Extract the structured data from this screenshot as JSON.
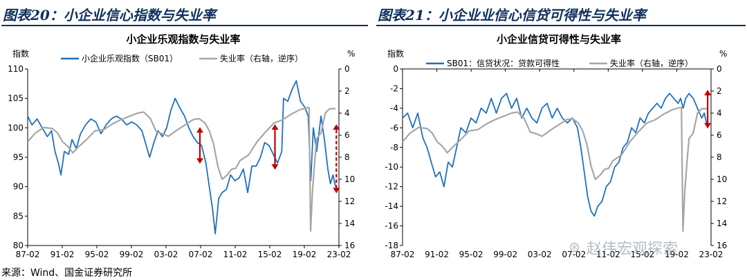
{
  "figures": [
    {
      "title": "图表20：小企业信心指数与失业率"
    },
    {
      "title": "图表21：小企业业信心信贷可得性与失业率"
    }
  ],
  "source": "来源：Wind、国金证券研究所",
  "watermark": "赵伟宏观探索",
  "chart_data": [
    {
      "type": "line",
      "title": "小企业乐观指数与失业率",
      "left_unit": "指数",
      "right_unit": "%",
      "x_ticks": [
        "87-02",
        "91-02",
        "95-02",
        "99-02",
        "03-02",
        "07-02",
        "11-02",
        "15-02",
        "19-02",
        "23-02"
      ],
      "ylim": [
        80,
        110
      ],
      "y_ticks": [
        80,
        85,
        90,
        95,
        100,
        105,
        110
      ],
      "y2lim": [
        0,
        16
      ],
      "y2_ticks": [
        0,
        2,
        4,
        6,
        8,
        10,
        12,
        14,
        16
      ],
      "y2_inverted": true,
      "series": [
        {
          "name": "小企业乐观指数（SB01）",
          "color": "#1f6fbf",
          "axis": "left",
          "points": [
            [
              1987.1,
              102
            ],
            [
              1987.6,
              100.5
            ],
            [
              1988.2,
              101.5
            ],
            [
              1988.8,
              100
            ],
            [
              1989.4,
              98.5
            ],
            [
              1989.9,
              99.5
            ],
            [
              1990.3,
              96
            ],
            [
              1990.7,
              94
            ],
            [
              1991.0,
              92
            ],
            [
              1991.4,
              96
            ],
            [
              1991.9,
              95.5
            ],
            [
              1992.3,
              98
            ],
            [
              1992.8,
              96.5
            ],
            [
              1993.3,
              99
            ],
            [
              1993.9,
              100.5
            ],
            [
              1994.5,
              101.5
            ],
            [
              1995.1,
              101
            ],
            [
              1995.7,
              99
            ],
            [
              1996.3,
              100.5
            ],
            [
              1996.9,
              101.5
            ],
            [
              1997.5,
              102
            ],
            [
              1998.1,
              101.5
            ],
            [
              1998.7,
              100.5
            ],
            [
              1999.3,
              101
            ],
            [
              1999.9,
              100.5
            ],
            [
              2000.5,
              99.5
            ],
            [
              2001.0,
              97
            ],
            [
              2001.4,
              95
            ],
            [
              2001.9,
              97.5
            ],
            [
              2002.4,
              99.5
            ],
            [
              2002.9,
              98.5
            ],
            [
              2003.4,
              100
            ],
            [
              2003.9,
              103
            ],
            [
              2004.4,
              105
            ],
            [
              2004.9,
              103.5
            ],
            [
              2005.5,
              102
            ],
            [
              2006.0,
              100
            ],
            [
              2006.5,
              98.5
            ],
            [
              2007.0,
              97.5
            ],
            [
              2007.5,
              97
            ],
            [
              2008.0,
              94
            ],
            [
              2008.4,
              90
            ],
            [
              2008.8,
              86
            ],
            [
              2009.1,
              82
            ],
            [
              2009.5,
              88
            ],
            [
              2009.9,
              89
            ],
            [
              2010.4,
              89.5
            ],
            [
              2010.9,
              92
            ],
            [
              2011.4,
              91
            ],
            [
              2011.9,
              91.5
            ],
            [
              2012.4,
              93
            ],
            [
              2012.9,
              89
            ],
            [
              2013.4,
              93.5
            ],
            [
              2013.9,
              93.5
            ],
            [
              2014.4,
              95
            ],
            [
              2014.9,
              97.5
            ],
            [
              2015.4,
              97
            ],
            [
              2015.9,
              95.5
            ],
            [
              2016.4,
              94
            ],
            [
              2016.9,
              96
            ],
            [
              2017.1,
              105
            ],
            [
              2017.6,
              104.5
            ],
            [
              2018.1,
              106.5
            ],
            [
              2018.6,
              108
            ],
            [
              2019.1,
              104.5
            ],
            [
              2019.6,
              103.5
            ],
            [
              2020.0,
              102
            ],
            [
              2020.3,
              91
            ],
            [
              2020.6,
              100
            ],
            [
              2021.0,
              96
            ],
            [
              2021.5,
              102
            ],
            [
              2021.9,
              98
            ],
            [
              2022.3,
              93
            ],
            [
              2022.6,
              90.5
            ],
            [
              2022.9,
              92
            ],
            [
              2023.2,
              90
            ]
          ]
        },
        {
          "name": "失业率（右轴，逆序）",
          "color": "#a6a6a6",
          "axis": "right",
          "points": [
            [
              1987.1,
              6.6
            ],
            [
              1988.0,
              5.8
            ],
            [
              1989.0,
              5.3
            ],
            [
              1990.0,
              5.4
            ],
            [
              1990.6,
              5.8
            ],
            [
              1991.2,
              6.6
            ],
            [
              1991.8,
              7.0
            ],
            [
              1992.4,
              7.6
            ],
            [
              1993.0,
              7.1
            ],
            [
              1994.0,
              6.4
            ],
            [
              1995.0,
              5.6
            ],
            [
              1996.0,
              5.5
            ],
            [
              1997.0,
              5.0
            ],
            [
              1998.0,
              4.6
            ],
            [
              1999.0,
              4.3
            ],
            [
              2000.0,
              4.0
            ],
            [
              2000.7,
              3.9
            ],
            [
              2001.5,
              4.5
            ],
            [
              2002.2,
              5.7
            ],
            [
              2003.0,
              5.9
            ],
            [
              2003.6,
              6.1
            ],
            [
              2004.5,
              5.6
            ],
            [
              2005.5,
              5.1
            ],
            [
              2006.5,
              4.6
            ],
            [
              2007.2,
              4.5
            ],
            [
              2007.9,
              4.9
            ],
            [
              2008.4,
              5.6
            ],
            [
              2008.9,
              6.8
            ],
            [
              2009.4,
              8.8
            ],
            [
              2009.9,
              10.0
            ],
            [
              2010.5,
              9.6
            ],
            [
              2011.0,
              9.1
            ],
            [
              2011.5,
              9.0
            ],
            [
              2012.0,
              8.3
            ],
            [
              2013.0,
              7.8
            ],
            [
              2014.0,
              6.6
            ],
            [
              2015.0,
              5.7
            ],
            [
              2016.0,
              4.9
            ],
            [
              2017.0,
              4.6
            ],
            [
              2018.0,
              4.1
            ],
            [
              2019.0,
              3.7
            ],
            [
              2019.9,
              3.5
            ],
            [
              2020.1,
              3.5
            ],
            [
              2020.28,
              14.7
            ],
            [
              2020.5,
              11.0
            ],
            [
              2020.8,
              8.0
            ],
            [
              2021.0,
              6.3
            ],
            [
              2021.5,
              5.8
            ],
            [
              2022.0,
              4.0
            ],
            [
              2022.5,
              3.6
            ],
            [
              2023.2,
              3.6
            ]
          ]
        }
      ]
    },
    {
      "type": "line",
      "title": "小企业信贷可得性与失业率",
      "left_unit": "指数",
      "right_unit": "%",
      "x_ticks": [
        "87-02",
        "91-02",
        "95-02",
        "99-02",
        "03-02",
        "07-02",
        "11-02",
        "15-02",
        "19-02",
        "23-02"
      ],
      "ylim": [
        -18,
        0
      ],
      "y_ticks": [
        -18,
        -16,
        -14,
        -12,
        -10,
        -8,
        -6,
        -4,
        -2,
        0
      ],
      "y2lim": [
        0,
        16
      ],
      "y2_ticks": [
        0,
        2,
        4,
        6,
        8,
        10,
        12,
        14,
        16
      ],
      "y2_inverted": true,
      "series": [
        {
          "name": "SB01：信贷状况：贷款可得性",
          "color": "#1f6fbf",
          "axis": "left",
          "points": [
            [
              1987.1,
              -5
            ],
            [
              1987.7,
              -4.5
            ],
            [
              1988.3,
              -6
            ],
            [
              1988.9,
              -4.5
            ],
            [
              1989.5,
              -7
            ],
            [
              1990.0,
              -8
            ],
            [
              1990.5,
              -9.5
            ],
            [
              1991.0,
              -11
            ],
            [
              1991.5,
              -10.5
            ],
            [
              1992.0,
              -12
            ],
            [
              1992.5,
              -9.5
            ],
            [
              1993.0,
              -10
            ],
            [
              1993.5,
              -8
            ],
            [
              1994.0,
              -6
            ],
            [
              1994.6,
              -6.5
            ],
            [
              1995.2,
              -5
            ],
            [
              1995.8,
              -5.5
            ],
            [
              1996.4,
              -4
            ],
            [
              1997.0,
              -4.5
            ],
            [
              1997.6,
              -3
            ],
            [
              1998.2,
              -4.5
            ],
            [
              1998.8,
              -3
            ],
            [
              1999.4,
              -2.5
            ],
            [
              2000.0,
              -4
            ],
            [
              2000.6,
              -3
            ],
            [
              2001.2,
              -5
            ],
            [
              2001.8,
              -4
            ],
            [
              2002.4,
              -5
            ],
            [
              2003.0,
              -5.5
            ],
            [
              2003.6,
              -4
            ],
            [
              2004.2,
              -3.5
            ],
            [
              2004.8,
              -5
            ],
            [
              2005.4,
              -4
            ],
            [
              2006.0,
              -5
            ],
            [
              2006.6,
              -5.5
            ],
            [
              2007.2,
              -5
            ],
            [
              2007.8,
              -6
            ],
            [
              2008.2,
              -8
            ],
            [
              2008.6,
              -10.5
            ],
            [
              2009.0,
              -13
            ],
            [
              2009.4,
              -14.5
            ],
            [
              2009.8,
              -15
            ],
            [
              2010.2,
              -14
            ],
            [
              2010.7,
              -13.5
            ],
            [
              2011.2,
              -12
            ],
            [
              2011.7,
              -11.5
            ],
            [
              2012.2,
              -10
            ],
            [
              2012.7,
              -9.5
            ],
            [
              2013.2,
              -8
            ],
            [
              2013.7,
              -7.5
            ],
            [
              2014.2,
              -6
            ],
            [
              2014.7,
              -6.5
            ],
            [
              2015.2,
              -5
            ],
            [
              2015.7,
              -5.5
            ],
            [
              2016.2,
              -4.5
            ],
            [
              2016.7,
              -4
            ],
            [
              2017.2,
              -3.5
            ],
            [
              2017.7,
              -4
            ],
            [
              2018.2,
              -3
            ],
            [
              2018.7,
              -2.5
            ],
            [
              2019.2,
              -3
            ],
            [
              2019.7,
              -3.5
            ],
            [
              2020.0,
              -3
            ],
            [
              2020.3,
              -4
            ],
            [
              2020.6,
              -3
            ],
            [
              2021.0,
              -2.5
            ],
            [
              2021.5,
              -3
            ],
            [
              2022.0,
              -4
            ],
            [
              2022.5,
              -5
            ],
            [
              2022.8,
              -4.5
            ],
            [
              2023.2,
              -6
            ]
          ]
        },
        {
          "name": "失业率（右轴，逆序）",
          "color": "#a6a6a6",
          "axis": "right",
          "points": [
            [
              1987.1,
              6.6
            ],
            [
              1988.0,
              5.8
            ],
            [
              1989.0,
              5.3
            ],
            [
              1990.0,
              5.4
            ],
            [
              1990.6,
              5.8
            ],
            [
              1991.2,
              6.6
            ],
            [
              1991.8,
              7.0
            ],
            [
              1992.4,
              7.6
            ],
            [
              1993.0,
              7.1
            ],
            [
              1994.0,
              6.4
            ],
            [
              1995.0,
              5.6
            ],
            [
              1996.0,
              5.5
            ],
            [
              1997.0,
              5.0
            ],
            [
              1998.0,
              4.6
            ],
            [
              1999.0,
              4.3
            ],
            [
              2000.0,
              4.0
            ],
            [
              2000.7,
              3.9
            ],
            [
              2001.5,
              4.5
            ],
            [
              2002.2,
              5.7
            ],
            [
              2003.0,
              5.9
            ],
            [
              2003.6,
              6.1
            ],
            [
              2004.5,
              5.6
            ],
            [
              2005.5,
              5.1
            ],
            [
              2006.5,
              4.6
            ],
            [
              2007.2,
              4.5
            ],
            [
              2007.9,
              4.9
            ],
            [
              2008.4,
              5.6
            ],
            [
              2008.9,
              6.8
            ],
            [
              2009.4,
              8.8
            ],
            [
              2009.9,
              10.0
            ],
            [
              2010.5,
              9.6
            ],
            [
              2011.0,
              9.1
            ],
            [
              2011.5,
              9.0
            ],
            [
              2012.0,
              8.3
            ],
            [
              2013.0,
              7.8
            ],
            [
              2014.0,
              6.6
            ],
            [
              2015.0,
              5.7
            ],
            [
              2016.0,
              4.9
            ],
            [
              2017.0,
              4.6
            ],
            [
              2018.0,
              4.1
            ],
            [
              2019.0,
              3.7
            ],
            [
              2019.9,
              3.5
            ],
            [
              2020.1,
              3.5
            ],
            [
              2020.28,
              14.7
            ],
            [
              2020.5,
              11.0
            ],
            [
              2020.8,
              8.0
            ],
            [
              2021.0,
              6.3
            ],
            [
              2021.5,
              5.8
            ],
            [
              2022.0,
              4.0
            ],
            [
              2022.5,
              3.6
            ],
            [
              2023.2,
              3.6
            ]
          ]
        }
      ]
    }
  ]
}
